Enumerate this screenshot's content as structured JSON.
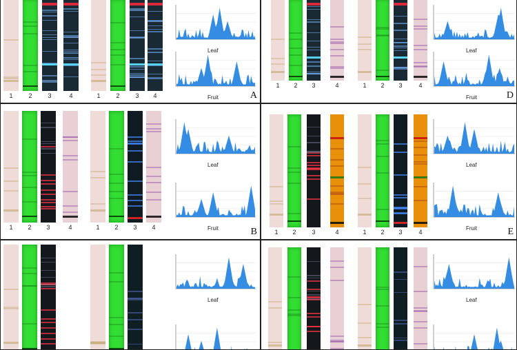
{
  "panels": [
    {
      "id": "A",
      "label": "A",
      "lane_numbers": [
        "1",
        "2",
        "3",
        "4",
        "1",
        "2",
        "3",
        "4"
      ],
      "charts": [
        {
          "title": "Leaf"
        },
        {
          "title": "Fruit"
        }
      ]
    },
    {
      "id": "D",
      "label": "D",
      "lane_numbers": [
        "1",
        "2",
        "3",
        "4",
        "1",
        "2",
        "3",
        "4"
      ],
      "charts": [
        {
          "title": "Leaf"
        },
        {
          "title": "Fruit"
        }
      ]
    },
    {
      "id": "B",
      "label": "B",
      "lane_numbers": [
        "1",
        "2",
        "3",
        "4",
        "1",
        "2",
        "3",
        "4"
      ],
      "charts": [
        {
          "title": "Leaf"
        },
        {
          "title": "Fruit"
        }
      ]
    },
    {
      "id": "E",
      "label": "E",
      "lane_numbers": [
        "1",
        "2",
        "3",
        "4",
        "1",
        "2",
        "3",
        "4"
      ],
      "charts": [
        {
          "title": "Leaf"
        },
        {
          "title": "Fruit"
        }
      ]
    },
    {
      "id": "C",
      "label": "",
      "lane_numbers": [],
      "charts": [
        {
          "title": "Leaf"
        },
        {
          "title": ""
        }
      ]
    },
    {
      "id": "F",
      "label": "",
      "lane_numbers": [],
      "charts": [
        {
          "title": "Leaf"
        },
        {
          "title": ""
        }
      ]
    }
  ],
  "colors": {
    "white_light": "#efdcd9",
    "green": "#33dd33",
    "uv366": "#1a2a35",
    "derivatized": "#e8d0d4",
    "orange": "#e8900a",
    "chart_fill": "#1f7fe0"
  }
}
